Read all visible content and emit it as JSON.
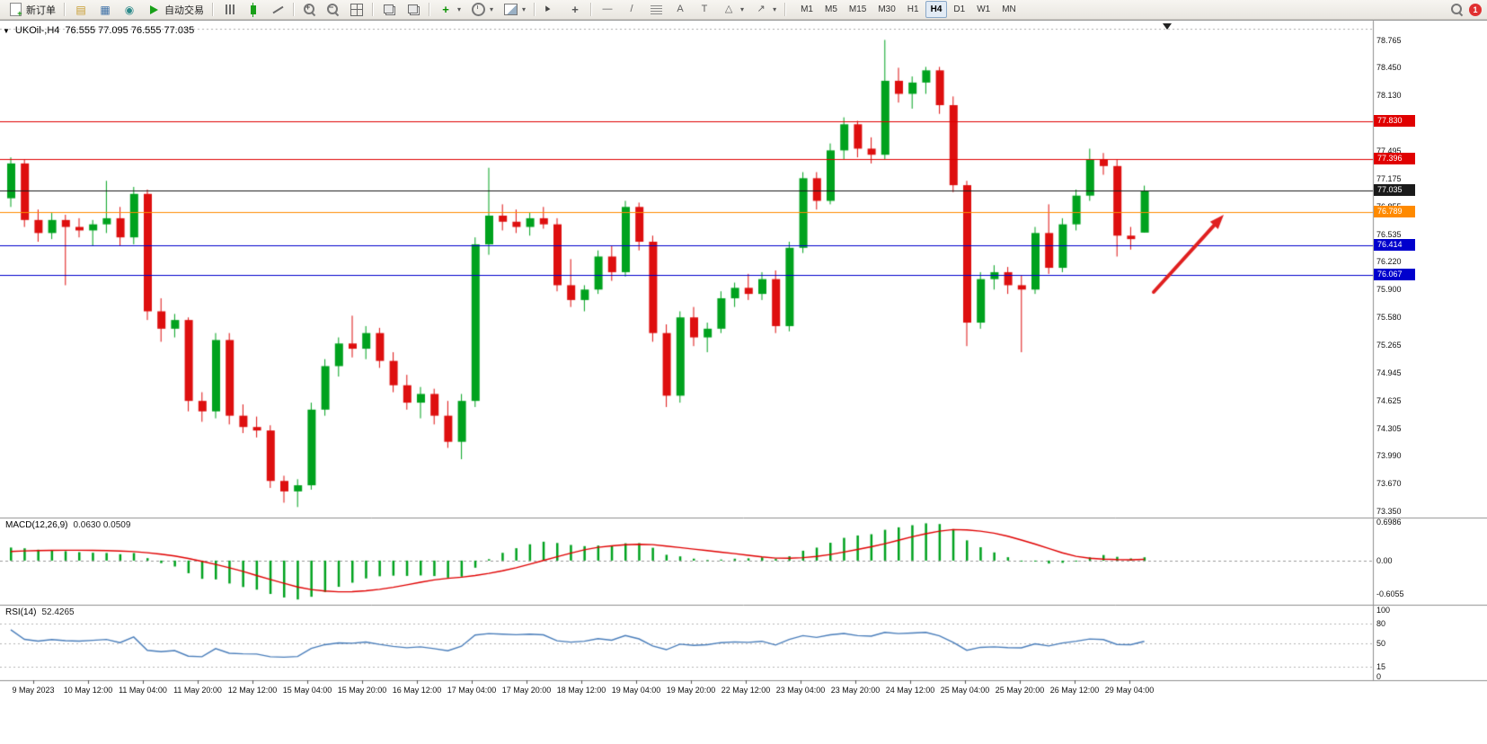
{
  "toolbar": {
    "new_order_label": "新订单",
    "autotrade_label": "自动交易",
    "timeframes": [
      "M1",
      "M5",
      "M15",
      "M30",
      "H1",
      "H4",
      "D1",
      "W1",
      "MN"
    ],
    "active_timeframe": "H4",
    "notification_count": "1"
  },
  "chart": {
    "symbol_title": "UKOil-,H4",
    "ohlc": "76.555 77.095 76.555 77.035"
  },
  "price_axis": {
    "ticks": [
      "78.765",
      "78.450",
      "78.130",
      "77.495",
      "77.175",
      "76.855",
      "76.535",
      "76.220",
      "75.900",
      "75.580",
      "75.265",
      "74.945",
      "74.625",
      "74.305",
      "73.990",
      "73.670",
      "73.350"
    ]
  },
  "macd_panel": {
    "title": "MACD(12,26,9)",
    "values": "0.0630 0.0509",
    "axis": [
      "0.6986",
      "0.00",
      "-0.6055"
    ],
    "axis_values": [
      0.6986,
      0,
      -0.6055
    ]
  },
  "rsi_panel": {
    "title": "RSI(14)",
    "value": "52.4265",
    "axis": [
      "100",
      "80",
      "50",
      "15",
      "0"
    ],
    "axis_values": [
      100,
      80,
      50,
      15,
      0
    ],
    "levels": [
      80,
      50,
      15
    ]
  },
  "time_axis": {
    "labels": [
      "9 May 2023",
      "10 May 12:00",
      "11 May 04:00",
      "11 May 20:00",
      "12 May 12:00",
      "15 May 04:00",
      "15 May 20:00",
      "16 May 12:00",
      "17 May 04:00",
      "17 May 20:00",
      "18 May 12:00",
      "19 May 04:00",
      "19 May 20:00",
      "22 May 12:00",
      "23 May 04:00",
      "23 May 20:00",
      "24 May 12:00",
      "25 May 04:00",
      "25 May 20:00",
      "26 May 12:00",
      "29 May 04:00"
    ]
  },
  "chart_data": {
    "type": "candlestick",
    "symbol": "UKOil-",
    "timeframe": "H4",
    "ohlc_current": {
      "open": 76.555,
      "high": 77.095,
      "low": 76.555,
      "close": 77.035
    },
    "price_range": {
      "max": 78.95,
      "min": 73.31
    },
    "candles": [
      [
        76.95,
        77.42,
        76.85,
        77.35
      ],
      [
        77.35,
        77.4,
        76.62,
        76.7
      ],
      [
        76.7,
        76.82,
        76.45,
        76.55
      ],
      [
        76.55,
        76.78,
        76.48,
        76.7
      ],
      [
        76.7,
        76.76,
        75.95,
        76.62
      ],
      [
        76.62,
        76.72,
        76.5,
        76.58
      ],
      [
        76.58,
        76.7,
        76.4,
        76.65
      ],
      [
        76.65,
        77.15,
        76.55,
        76.72
      ],
      [
        76.72,
        76.85,
        76.4,
        76.5
      ],
      [
        76.5,
        77.08,
        76.42,
        77.0
      ],
      [
        77.0,
        77.05,
        75.55,
        75.65
      ],
      [
        75.65,
        75.8,
        75.3,
        75.45
      ],
      [
        75.45,
        75.62,
        75.35,
        75.55
      ],
      [
        75.55,
        75.58,
        74.5,
        74.62
      ],
      [
        74.62,
        74.72,
        74.38,
        74.5
      ],
      [
        74.5,
        75.4,
        74.42,
        75.32
      ],
      [
        75.32,
        75.4,
        74.35,
        74.45
      ],
      [
        74.45,
        74.58,
        74.25,
        74.32
      ],
      [
        74.32,
        74.44,
        74.2,
        74.28
      ],
      [
        74.28,
        74.34,
        73.62,
        73.7
      ],
      [
        73.7,
        73.76,
        73.45,
        73.58
      ],
      [
        73.58,
        73.72,
        73.4,
        73.65
      ],
      [
        73.65,
        74.6,
        73.6,
        74.52
      ],
      [
        74.52,
        75.1,
        74.45,
        75.02
      ],
      [
        75.02,
        75.35,
        74.9,
        75.28
      ],
      [
        75.28,
        75.6,
        75.12,
        75.22
      ],
      [
        75.22,
        75.48,
        75.1,
        75.4
      ],
      [
        75.4,
        75.46,
        75.0,
        75.08
      ],
      [
        75.08,
        75.18,
        74.72,
        74.8
      ],
      [
        74.8,
        74.92,
        74.52,
        74.6
      ],
      [
        74.6,
        74.78,
        74.42,
        74.7
      ],
      [
        74.7,
        74.76,
        74.35,
        74.45
      ],
      [
        74.45,
        74.62,
        74.08,
        74.15
      ],
      [
        74.15,
        74.7,
        73.95,
        74.62
      ],
      [
        74.62,
        76.5,
        74.55,
        76.42
      ],
      [
        76.42,
        77.3,
        76.3,
        76.75
      ],
      [
        76.75,
        76.88,
        76.58,
        76.68
      ],
      [
        76.68,
        76.82,
        76.55,
        76.62
      ],
      [
        76.62,
        76.78,
        76.52,
        76.72
      ],
      [
        76.72,
        76.85,
        76.6,
        76.65
      ],
      [
        76.65,
        76.72,
        75.88,
        75.95
      ],
      [
        75.95,
        76.25,
        75.7,
        75.78
      ],
      [
        75.78,
        75.95,
        75.65,
        75.9
      ],
      [
        75.9,
        76.35,
        75.85,
        76.28
      ],
      [
        76.28,
        76.4,
        76.0,
        76.1
      ],
      [
        76.1,
        76.92,
        76.05,
        76.85
      ],
      [
        76.85,
        76.9,
        76.35,
        76.45
      ],
      [
        76.45,
        76.52,
        75.3,
        75.4
      ],
      [
        75.4,
        75.5,
        74.55,
        74.68
      ],
      [
        74.68,
        75.65,
        74.6,
        75.58
      ],
      [
        75.58,
        75.7,
        75.25,
        75.35
      ],
      [
        75.35,
        75.52,
        75.18,
        75.45
      ],
      [
        75.45,
        75.88,
        75.4,
        75.8
      ],
      [
        75.8,
        75.98,
        75.7,
        75.92
      ],
      [
        75.92,
        76.08,
        75.78,
        75.85
      ],
      [
        75.85,
        76.1,
        75.78,
        76.02
      ],
      [
        76.02,
        76.12,
        75.4,
        75.48
      ],
      [
        75.48,
        76.45,
        75.42,
        76.38
      ],
      [
        76.38,
        77.25,
        76.32,
        77.18
      ],
      [
        77.18,
        77.25,
        76.82,
        76.92
      ],
      [
        76.92,
        77.58,
        76.88,
        77.5
      ],
      [
        77.5,
        77.88,
        77.4,
        77.8
      ],
      [
        77.8,
        77.84,
        77.42,
        77.52
      ],
      [
        77.52,
        77.65,
        77.35,
        77.45
      ],
      [
        77.45,
        78.77,
        77.4,
        78.3
      ],
      [
        78.3,
        78.45,
        78.05,
        78.15
      ],
      [
        78.15,
        78.35,
        77.98,
        78.28
      ],
      [
        78.28,
        78.46,
        78.15,
        78.42
      ],
      [
        78.42,
        78.46,
        77.92,
        78.02
      ],
      [
        78.02,
        78.12,
        77.02,
        77.1
      ],
      [
        77.1,
        77.15,
        75.25,
        75.52
      ],
      [
        75.52,
        76.1,
        75.45,
        76.02
      ],
      [
        76.02,
        76.18,
        75.9,
        76.1
      ],
      [
        76.1,
        76.16,
        75.85,
        75.95
      ],
      [
        75.95,
        76.06,
        75.18,
        75.9
      ],
      [
        75.9,
        76.62,
        75.85,
        76.55
      ],
      [
        76.55,
        76.88,
        76.08,
        76.15
      ],
      [
        76.15,
        76.72,
        76.1,
        76.65
      ],
      [
        76.65,
        77.05,
        76.58,
        76.98
      ],
      [
        76.98,
        77.52,
        76.92,
        77.4
      ],
      [
        77.4,
        77.47,
        77.22,
        77.32
      ],
      [
        77.32,
        77.4,
        76.28,
        76.52
      ],
      [
        76.52,
        76.62,
        76.36,
        76.48
      ],
      [
        76.555,
        77.095,
        76.555,
        77.035
      ]
    ],
    "hlines": [
      {
        "price": 78.9,
        "color": "#aaaaaa",
        "style": "dotted",
        "label": ""
      },
      {
        "price": 77.83,
        "color": "#e00000",
        "style": "solid",
        "label": "77.830"
      },
      {
        "price": 77.396,
        "color": "#e00000",
        "style": "solid",
        "label": "77.396"
      },
      {
        "price": 77.035,
        "color": "#1a1a1a",
        "style": "solid",
        "label": "77.035"
      },
      {
        "price": 76.789,
        "color": "#ff8a00",
        "style": "solid",
        "label": "76.789"
      },
      {
        "price": 76.414,
        "color": "#0000cd",
        "style": "solid",
        "label": "76.414"
      },
      {
        "price": 76.067,
        "color": "#0000cd",
        "style": "solid",
        "label": "76.067"
      }
    ],
    "indicators": [
      {
        "name": "MACD",
        "params": [
          12,
          26,
          9
        ],
        "display_values": [
          0.063,
          0.0509
        ]
      },
      {
        "name": "RSI",
        "params": [
          14
        ],
        "display_value": 52.4265
      }
    ],
    "colors": {
      "bull": "#00a21e",
      "bear": "#de0f0f",
      "macd_hist": "#00a21e",
      "macd_signal": "#e00000",
      "rsi_line": "#4a7ebb",
      "annotation_arrow": "#e02020"
    },
    "annotations": [
      {
        "type": "arrow",
        "color": "#e02020",
        "tail": [
          1284,
          302
        ],
        "tip": [
          1362,
          216
        ]
      }
    ]
  }
}
